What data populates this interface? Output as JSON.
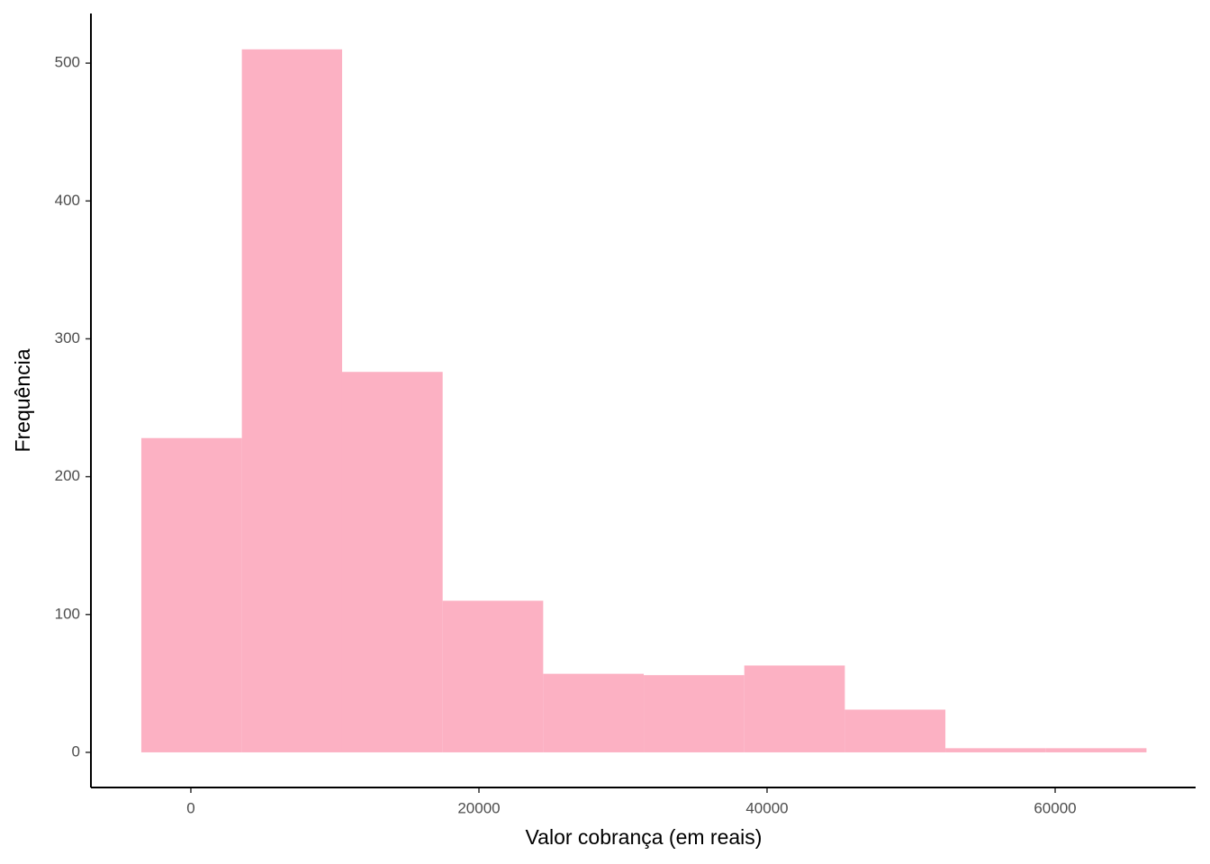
{
  "chart_data": {
    "type": "histogram",
    "x_label": "Valor cobrança (em reais)",
    "y_label": "Frequência",
    "bins": [
      -3440,
      3540,
      10500,
      17480,
      24460,
      31440,
      38420,
      45400,
      52380,
      59360,
      66340
    ],
    "values": [
      228,
      510,
      276,
      110,
      57,
      56,
      63,
      31,
      3,
      3
    ],
    "color": "#fcb1c3",
    "xlim": [
      -6937,
      69750
    ],
    "ylim": [
      -25.5,
      536
    ],
    "xticks": [
      0,
      20000,
      40000,
      60000
    ],
    "yticks": [
      0,
      100,
      200,
      300,
      400,
      500
    ],
    "grid": false
  }
}
